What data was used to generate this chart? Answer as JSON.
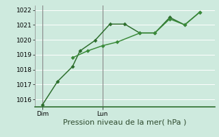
{
  "background_color": "#ceeade",
  "grid_color_major": "#e8b8c8",
  "grid_color_minor": "#ffffff",
  "line_color_1": "#2d6e2d",
  "line_color_2": "#3a8a3a",
  "ylabel_ticks": [
    1016,
    1017,
    1018,
    1019,
    1020,
    1021,
    1022
  ],
  "ylim": [
    1015.5,
    1022.3
  ],
  "xlabel": "Pression niveau de la mer( hPa )",
  "xtick_labels": [
    "Dim",
    "Lun"
  ],
  "xtick_positions": [
    0.5,
    4.5
  ],
  "series1_x": [
    0.5,
    1.5,
    2.5,
    3.0,
    4.0,
    5.0,
    6.0,
    7.0,
    8.0,
    9.0,
    10.0,
    11.0
  ],
  "series1_y": [
    1015.65,
    1017.2,
    1018.2,
    1019.25,
    1019.95,
    1021.05,
    1021.05,
    1020.45,
    1020.45,
    1021.5,
    1021.0,
    1021.85
  ],
  "series2_x": [
    2.5,
    3.5,
    4.5,
    5.5,
    7.0,
    8.0,
    9.0,
    10.0,
    11.0
  ],
  "series2_y": [
    1018.8,
    1019.25,
    1019.6,
    1019.85,
    1020.45,
    1020.45,
    1021.4,
    1021.0,
    1021.85
  ],
  "marker_size": 3.0,
  "line_width": 1.1,
  "tick_fontsize": 6.5,
  "label_fontsize": 8,
  "vline_positions": [
    0.5,
    4.5
  ],
  "vline_color": "#888888",
  "xlim": [
    0.0,
    12.0
  ]
}
